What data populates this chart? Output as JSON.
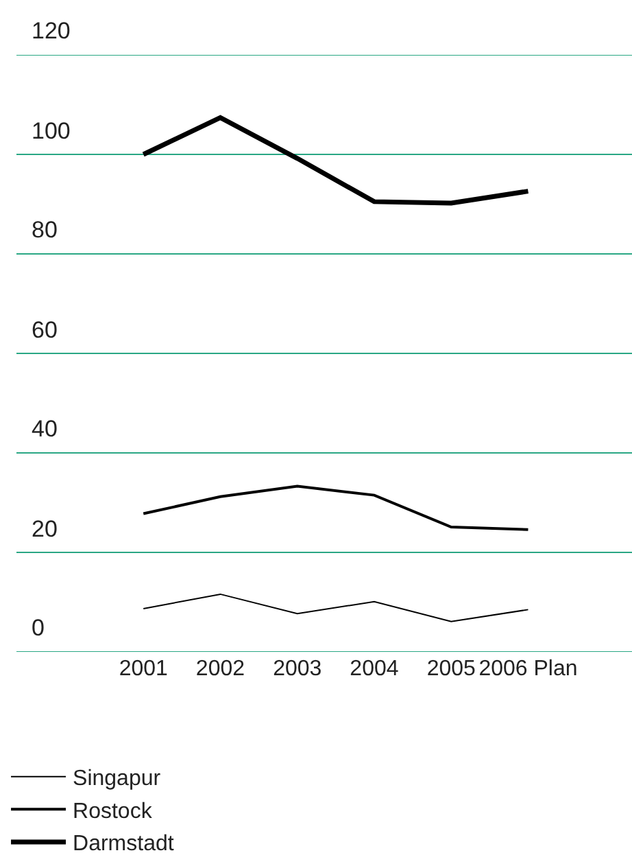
{
  "chart_data": {
    "type": "line",
    "categories": [
      "2001",
      "2002",
      "2003",
      "2004",
      "2005",
      "2006 Plan"
    ],
    "series": [
      {
        "name": "Singapur",
        "color": "#000000",
        "values": [
          8.7,
          11.6,
          7.7,
          10.1,
          6.1,
          8.5
        ]
      },
      {
        "name": "Rostock",
        "color": "#000000",
        "values": [
          27.8,
          31.2,
          33.3,
          31.5,
          25.1,
          24.6
        ]
      },
      {
        "name": "Darmstadt",
        "color": "#000000",
        "values": [
          100,
          107.4,
          99.2,
          90.5,
          90.2,
          92.6
        ]
      }
    ],
    "ylim": [
      0,
      120
    ],
    "yticks": [
      0,
      20,
      40,
      60,
      80,
      100,
      120
    ],
    "grid": "y",
    "legend": "bottom",
    "marker": "none",
    "line_style": "solid"
  }
}
